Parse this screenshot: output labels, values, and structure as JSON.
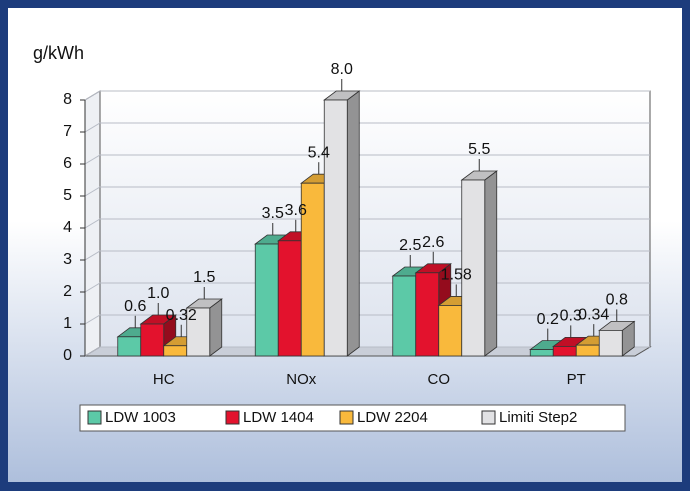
{
  "chart_data": {
    "type": "bar3d",
    "y_label": "g/kWh",
    "categories": [
      "HC",
      "NOx",
      "CO",
      "PT"
    ],
    "series": [
      {
        "name": "LDW 1003",
        "color": "#5cc9a7",
        "values": [
          0.6,
          3.5,
          2.5,
          0.2
        ],
        "value_labels": [
          "0.6",
          "3.5",
          "2.5",
          "0.2"
        ]
      },
      {
        "name": "LDW 1404",
        "color": "#e3122d",
        "values": [
          1.0,
          3.6,
          2.6,
          0.3
        ],
        "value_labels": [
          "1.0",
          "3.6",
          "2.6",
          "0.3"
        ]
      },
      {
        "name": "LDW 2204",
        "color": "#f9b93c",
        "values": [
          0.32,
          5.4,
          1.58,
          0.34
        ],
        "value_labels": [
          "0.32",
          "5.4",
          "1.58",
          "0.34"
        ]
      },
      {
        "name": "Limiti Step2",
        "color": "#e2e2e4",
        "values": [
          1.5,
          8.0,
          5.5,
          0.8
        ],
        "value_labels": [
          "1.5",
          "8.0",
          "5.5",
          "0.8"
        ]
      }
    ],
    "ylim": [
      0,
      8
    ],
    "yticks": [
      0,
      1,
      2,
      3,
      4,
      5,
      6,
      7,
      8
    ],
    "grid": true,
    "legend": "bottom"
  }
}
